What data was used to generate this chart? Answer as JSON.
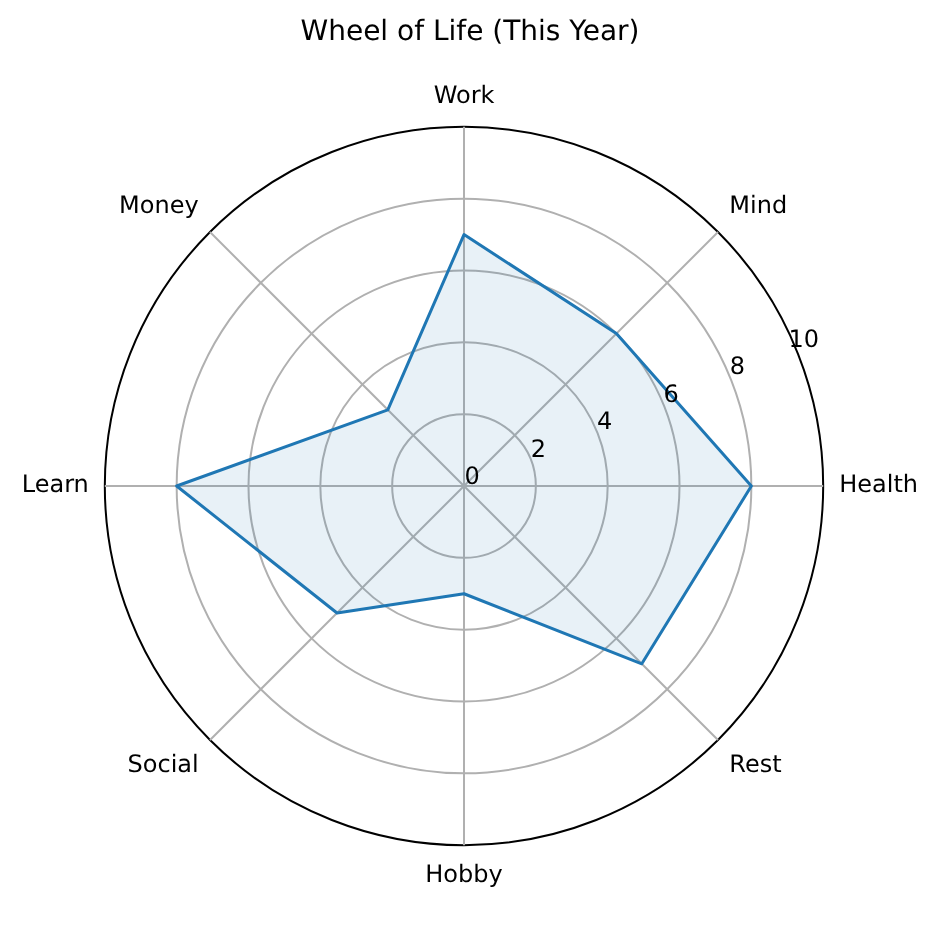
{
  "chart_data": {
    "type": "radar",
    "title": "Wheel of Life (This Year)",
    "categories": [
      "Work",
      "Mind",
      "Health",
      "Rest",
      "Hobby",
      "Social",
      "Learn",
      "Money"
    ],
    "series": [
      {
        "color": "#1f77b4",
        "values": [
          7,
          6,
          8,
          7,
          3,
          5,
          8,
          3
        ]
      }
    ],
    "ylim": [
      0,
      10
    ],
    "yticks": [
      0,
      2,
      4,
      6,
      8,
      10
    ],
    "grid": true,
    "legend": false,
    "marker": "none"
  }
}
